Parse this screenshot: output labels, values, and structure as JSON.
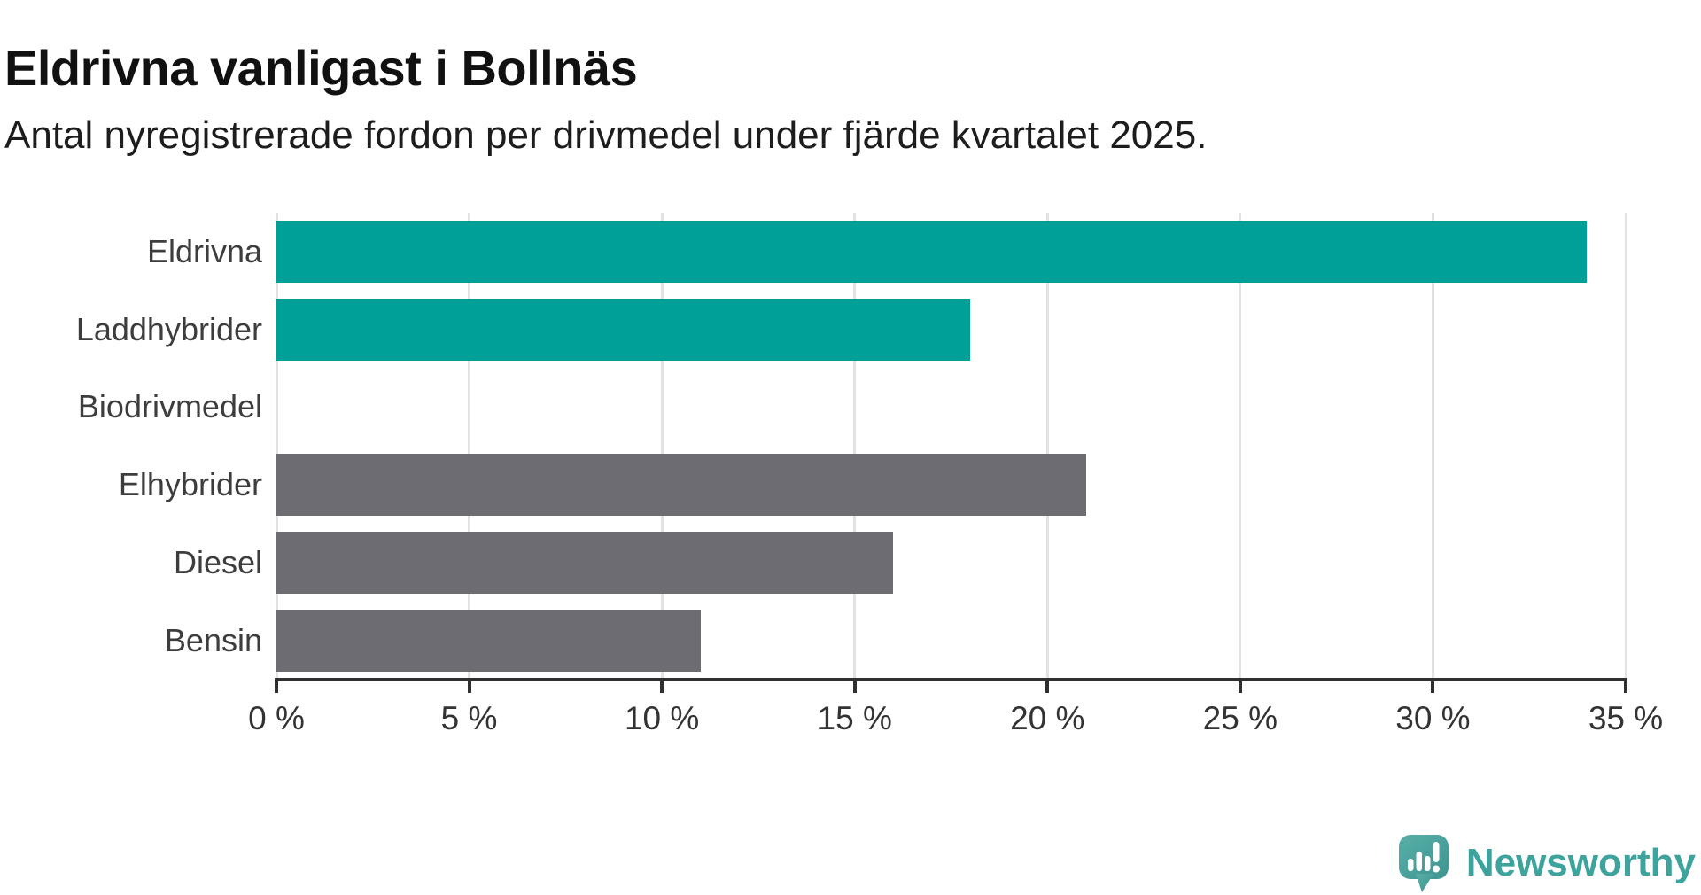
{
  "title": "Eldrivna vanligast i Bollnäs",
  "subtitle": "Antal nyregistrerade fordon per drivmedel under fjärde kvartalet 2025.",
  "chart_data": {
    "type": "bar",
    "orientation": "horizontal",
    "title": "Eldrivna vanligast i Bollnäs",
    "subtitle": "Antal nyregistrerade fordon per drivmedel under fjärde kvartalet 2025.",
    "categories": [
      "Eldrivna",
      "Laddhybrider",
      "Biodrivmedel",
      "Elhybrider",
      "Diesel",
      "Bensin"
    ],
    "values": [
      34,
      18,
      0,
      21,
      16,
      11
    ],
    "unit": "%",
    "bar_colors": [
      "#00a099",
      "#00a099",
      "#00a099",
      "#6d6d71",
      "#6d6d71",
      "#6d6d71"
    ],
    "highlight_color": "#00a099",
    "default_color": "#6d6d71",
    "xlim": [
      0,
      35
    ],
    "x_tick_values": [
      0,
      5,
      10,
      15,
      20,
      25,
      30,
      35
    ],
    "x_tick_labels": [
      "0 %",
      "5 %",
      "10 %",
      "15 %",
      "20 %",
      "25 %",
      "30 %",
      "35 %"
    ],
    "xlabel": "",
    "ylabel": "",
    "grid": true,
    "legend": false
  },
  "footer": {
    "brand": "Newsworthy",
    "brand_color": "#3da39c",
    "logo_icon": "speech-bubble-barchart-icon"
  },
  "colors": {
    "background": "#ffffff",
    "title": "#111111",
    "subtitle": "#1d1d1d",
    "gridline": "#e2e2e2",
    "axis": "#2f2f2f",
    "tick_label": "#333333",
    "category_label": "#3d3d3d"
  }
}
